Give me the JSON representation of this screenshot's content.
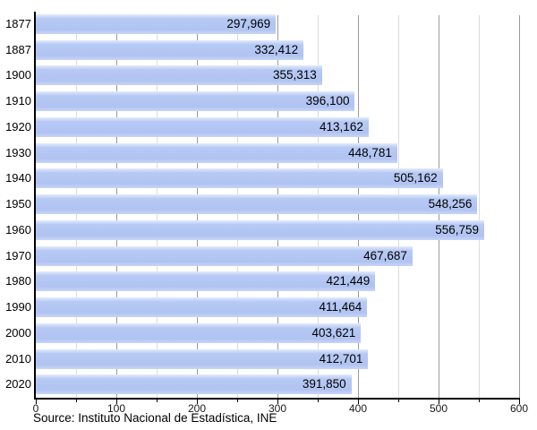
{
  "chart_data": {
    "type": "bar",
    "orientation": "horizontal",
    "title": "",
    "categories": [
      "1877",
      "1887",
      "1900",
      "1910",
      "1920",
      "1930",
      "1940",
      "1950",
      "1960",
      "1970",
      "1980",
      "1990",
      "2000",
      "2010",
      "2020"
    ],
    "values": [
      297969,
      332412,
      355313,
      396100,
      413162,
      448781,
      505162,
      548256,
      556759,
      467687,
      421449,
      411464,
      403621,
      412701,
      391850
    ],
    "value_labels": [
      "297,969",
      "332,412",
      "355,313",
      "396,100",
      "413,162",
      "448,781",
      "505,162",
      "548,256",
      "556,759",
      "467,687",
      "421,449",
      "411,464",
      "403,621",
      "412,701",
      "391,850"
    ],
    "x_axis": {
      "min": 0,
      "max": 600,
      "major_tick_labels": [
        "0",
        "100",
        "200",
        "300",
        "400",
        "500",
        "600"
      ],
      "major_tick_values": [
        0,
        100,
        200,
        300,
        400,
        500,
        600
      ],
      "minor_tick_step": 50,
      "value_scale_per_unit": 1000
    },
    "legend": "none",
    "grid": "vertical-major-and-minor",
    "bar_color": "#b0c3f1",
    "gridline_major_color": "#9a9a9a",
    "gridline_minor_color": "#dcdcdc",
    "axis_color": "#000000",
    "source": "Source: Instituto Nacional de Estadística, INE"
  }
}
